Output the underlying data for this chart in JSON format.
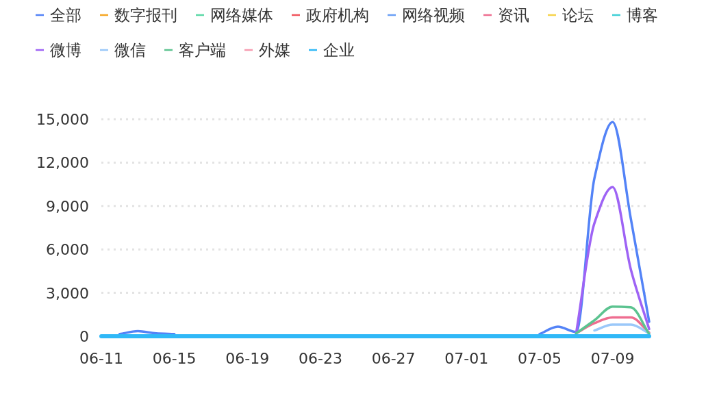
{
  "chart_data": {
    "type": "line",
    "categories": [
      "06-11",
      null,
      null,
      null,
      "06-15",
      null,
      null,
      null,
      "06-19",
      null,
      null,
      null,
      "06-23",
      null,
      null,
      null,
      "06-27",
      null,
      null,
      null,
      "07-01",
      null,
      null,
      null,
      "07-05",
      null,
      null,
      null,
      "07-09",
      null,
      null
    ],
    "ylim": [
      0,
      15000
    ],
    "yticks": [
      0,
      {
        "value": 3000,
        "label": "3,000"
      },
      {
        "value": 6000,
        "label": "6,000"
      },
      {
        "value": 9000,
        "label": "9,000"
      },
      {
        "value": 12000,
        "label": "12,000"
      },
      {
        "value": 15000,
        "label": "15,000"
      }
    ],
    "grid": "y",
    "legend": "top",
    "marker": "none",
    "line_style": "solid",
    "series": [
      {
        "name": "全部",
        "color": "#5383f7",
        "values": [
          null,
          150,
          350,
          200,
          150,
          null,
          null,
          null,
          null,
          null,
          null,
          null,
          null,
          null,
          null,
          null,
          null,
          null,
          null,
          null,
          null,
          null,
          null,
          null,
          150,
          660,
          300,
          10900,
          14800,
          8100,
          1000
        ]
      },
      {
        "name": "数字报刊",
        "color": "#f5a623",
        "values": [
          null,
          null,
          null,
          null,
          null,
          null,
          null,
          null,
          null,
          null,
          null,
          null,
          null,
          null,
          null,
          null,
          null,
          null,
          null,
          null,
          null,
          null,
          null,
          null,
          null,
          null,
          null,
          null,
          null,
          null,
          null
        ]
      },
      {
        "name": "网络媒体",
        "color": "#5ad8a6",
        "values": [
          null,
          null,
          null,
          null,
          null,
          null,
          null,
          null,
          null,
          null,
          null,
          null,
          null,
          null,
          null,
          null,
          null,
          null,
          null,
          null,
          null,
          null,
          null,
          null,
          null,
          null,
          null,
          null,
          null,
          null,
          null
        ]
      },
      {
        "name": "政府机构",
        "color": "#f0545c",
        "values": [
          null,
          null,
          null,
          null,
          null,
          null,
          null,
          null,
          null,
          null,
          null,
          null,
          null,
          null,
          null,
          null,
          null,
          null,
          null,
          null,
          null,
          null,
          null,
          null,
          null,
          null,
          null,
          null,
          null,
          null,
          null
        ]
      },
      {
        "name": "网络视频",
        "color": "#6a9ff5",
        "values": [
          null,
          null,
          null,
          null,
          null,
          null,
          null,
          null,
          null,
          null,
          null,
          null,
          null,
          null,
          null,
          null,
          null,
          null,
          null,
          null,
          null,
          null,
          null,
          null,
          null,
          null,
          null,
          null,
          null,
          null,
          null
        ]
      },
      {
        "name": "资讯",
        "color": "#ee6d90",
        "values": [
          null,
          null,
          null,
          null,
          null,
          null,
          null,
          null,
          null,
          null,
          null,
          null,
          null,
          null,
          null,
          null,
          null,
          null,
          null,
          null,
          null,
          null,
          null,
          null,
          null,
          null,
          200,
          900,
          1300,
          1300,
          250
        ]
      },
      {
        "name": "论坛",
        "color": "#f6d34a",
        "values": [
          null,
          null,
          null,
          null,
          null,
          null,
          null,
          null,
          null,
          null,
          null,
          null,
          null,
          null,
          null,
          null,
          null,
          null,
          null,
          null,
          null,
          null,
          null,
          null,
          null,
          null,
          null,
          null,
          null,
          null,
          null
        ]
      },
      {
        "name": "博客",
        "color": "#3fcfd6",
        "values": [
          null,
          null,
          null,
          null,
          null,
          null,
          null,
          null,
          null,
          null,
          null,
          null,
          null,
          null,
          null,
          null,
          null,
          null,
          null,
          null,
          null,
          null,
          null,
          null,
          null,
          null,
          null,
          null,
          null,
          null,
          null
        ]
      },
      {
        "name": "微博",
        "color": "#9e63f5",
        "values": [
          null,
          null,
          null,
          null,
          null,
          null,
          null,
          null,
          null,
          null,
          null,
          null,
          null,
          null,
          null,
          null,
          null,
          null,
          null,
          null,
          null,
          null,
          null,
          null,
          null,
          null,
          200,
          7800,
          10300,
          4600,
          500
        ]
      },
      {
        "name": "微信",
        "color": "#9ac8f9",
        "values": [
          null,
          null,
          null,
          null,
          null,
          null,
          null,
          null,
          null,
          null,
          null,
          null,
          null,
          null,
          null,
          null,
          null,
          null,
          null,
          null,
          null,
          null,
          null,
          null,
          null,
          null,
          null,
          400,
          800,
          800,
          200
        ]
      },
      {
        "name": "客户端",
        "color": "#5cc390",
        "values": [
          null,
          null,
          null,
          null,
          null,
          null,
          null,
          null,
          null,
          null,
          null,
          null,
          null,
          null,
          null,
          null,
          null,
          null,
          null,
          null,
          null,
          null,
          null,
          null,
          null,
          null,
          200,
          1100,
          2050,
          2000,
          150
        ]
      },
      {
        "name": "外媒",
        "color": "#f79bb0",
        "values": [
          null,
          null,
          null,
          null,
          null,
          null,
          null,
          null,
          null,
          null,
          null,
          null,
          null,
          null,
          null,
          null,
          null,
          null,
          null,
          null,
          null,
          null,
          null,
          null,
          null,
          null,
          null,
          null,
          null,
          null,
          null
        ]
      },
      {
        "name": "企业",
        "color": "#30b8f7",
        "values": [
          0,
          0,
          0,
          0,
          0,
          0,
          0,
          0,
          0,
          0,
          0,
          0,
          0,
          0,
          0,
          0,
          0,
          0,
          0,
          0,
          0,
          0,
          0,
          0,
          0,
          0,
          0,
          0,
          0,
          0,
          0
        ]
      }
    ]
  }
}
